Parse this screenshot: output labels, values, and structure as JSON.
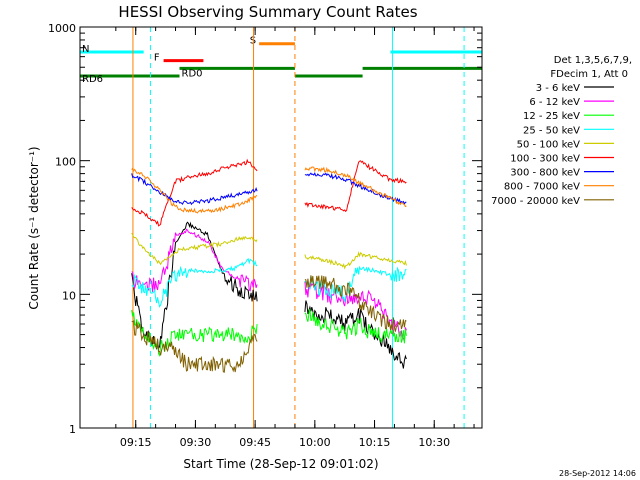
{
  "chart_data": {
    "type": "line",
    "title": "HESSI Observing Summary Count Rates",
    "xlabel": "Start Time (28-Sep-12 09:01:02)",
    "ylabel": "Count Rate (s⁻¹ detector⁻¹)",
    "yscale": "log",
    "xlim": [
      "09:01",
      "10:42"
    ],
    "ylim": [
      1,
      1000
    ],
    "x_ticks": [
      "09:15",
      "09:30",
      "09:45",
      "10:00",
      "10:15",
      "10:30"
    ],
    "y_ticks": [
      "1",
      "10",
      "100",
      "1000"
    ],
    "legend_header": [
      "Det 1,3,5,6,7,9,",
      "FDecim 1, Att 0"
    ],
    "timestamp": "28-Sep-2012 14:06",
    "gaps": [
      [
        "09:45.5",
        "09:57.5"
      ],
      [
        "10:23",
        "10:42"
      ]
    ],
    "series": [
      {
        "name": "3 - 6 keV",
        "color": "#000000",
        "points": [
          [
            "09:14",
            13
          ],
          [
            "09:17",
            5
          ],
          [
            "09:21",
            4
          ],
          [
            "09:25",
            24
          ],
          [
            "09:28",
            34
          ],
          [
            "09:33",
            28
          ],
          [
            "09:37",
            14
          ],
          [
            "09:41",
            11
          ],
          [
            "09:43",
            10
          ],
          [
            "09:58",
            8
          ],
          [
            "10:03",
            7
          ],
          [
            "10:08",
            6
          ],
          [
            "10:11",
            7
          ],
          [
            "10:15",
            5
          ],
          [
            "10:19",
            4
          ],
          [
            "10:23",
            3
          ]
        ]
      },
      {
        "name": "6 - 12 keV",
        "color": "#ff00ff",
        "points": [
          [
            "09:14",
            13
          ],
          [
            "09:17",
            12
          ],
          [
            "09:21",
            12
          ],
          [
            "09:25",
            27
          ],
          [
            "09:28",
            30
          ],
          [
            "09:33",
            25
          ],
          [
            "09:37",
            15
          ],
          [
            "09:41",
            13
          ],
          [
            "09:43",
            12
          ],
          [
            "09:58",
            11
          ],
          [
            "10:03",
            10
          ],
          [
            "10:08",
            9
          ],
          [
            "10:11",
            10
          ],
          [
            "10:15",
            9
          ],
          [
            "10:19",
            6
          ],
          [
            "10:23",
            5
          ]
        ]
      },
      {
        "name": "12 - 25 keV",
        "color": "#00ff00",
        "points": [
          [
            "09:14",
            7
          ],
          [
            "09:17",
            5
          ],
          [
            "09:21",
            4
          ],
          [
            "09:25",
            5
          ],
          [
            "09:28",
            5
          ],
          [
            "09:33",
            5
          ],
          [
            "09:37",
            5
          ],
          [
            "09:41",
            5
          ],
          [
            "09:43",
            5
          ],
          [
            "09:58",
            7
          ],
          [
            "10:03",
            6
          ],
          [
            "10:08",
            5
          ],
          [
            "10:11",
            6
          ],
          [
            "10:15",
            5
          ],
          [
            "10:19",
            5
          ],
          [
            "10:23",
            5
          ]
        ]
      },
      {
        "name": "25 - 50 keV",
        "color": "#00ffff",
        "points": [
          [
            "09:14",
            13
          ],
          [
            "09:17",
            11
          ],
          [
            "09:21",
            9
          ],
          [
            "09:25",
            14
          ],
          [
            "09:28",
            15
          ],
          [
            "09:33",
            15
          ],
          [
            "09:37",
            15
          ],
          [
            "09:41",
            16
          ],
          [
            "09:43",
            18
          ],
          [
            "09:58",
            12
          ],
          [
            "10:03",
            11
          ],
          [
            "10:08",
            10
          ],
          [
            "10:11",
            16
          ],
          [
            "10:15",
            15
          ],
          [
            "10:19",
            14
          ],
          [
            "10:23",
            14
          ]
        ]
      },
      {
        "name": "50 - 100 keV",
        "color": "#cccc00",
        "points": [
          [
            "09:14",
            28
          ],
          [
            "09:17",
            22
          ],
          [
            "09:21",
            17
          ],
          [
            "09:25",
            21
          ],
          [
            "09:28",
            22
          ],
          [
            "09:33",
            23
          ],
          [
            "09:37",
            24
          ],
          [
            "09:41",
            26
          ],
          [
            "09:43",
            27
          ],
          [
            "09:58",
            19
          ],
          [
            "10:03",
            18
          ],
          [
            "10:08",
            16
          ],
          [
            "10:11",
            20
          ],
          [
            "10:15",
            19
          ],
          [
            "10:19",
            18
          ],
          [
            "10:23",
            17
          ]
        ]
      },
      {
        "name": "100 - 300 keV",
        "color": "#ff0000",
        "points": [
          [
            "09:14",
            45
          ],
          [
            "09:17",
            40
          ],
          [
            "09:21",
            33
          ],
          [
            "09:25",
            70
          ],
          [
            "09:28",
            75
          ],
          [
            "09:33",
            80
          ],
          [
            "09:37",
            88
          ],
          [
            "09:41",
            93
          ],
          [
            "09:43",
            98
          ],
          [
            "09:58",
            47
          ],
          [
            "10:03",
            45
          ],
          [
            "10:08",
            43
          ],
          [
            "10:11",
            100
          ],
          [
            "10:15",
            85
          ],
          [
            "10:19",
            72
          ],
          [
            "10:23",
            70
          ]
        ]
      },
      {
        "name": "300 - 800 keV",
        "color": "#0000ff",
        "points": [
          [
            "09:14",
            78
          ],
          [
            "09:17",
            70
          ],
          [
            "09:21",
            58
          ],
          [
            "09:25",
            50
          ],
          [
            "09:28",
            48
          ],
          [
            "09:33",
            50
          ],
          [
            "09:37",
            53
          ],
          [
            "09:41",
            56
          ],
          [
            "09:43",
            58
          ],
          [
            "09:58",
            80
          ],
          [
            "10:03",
            78
          ],
          [
            "10:08",
            72
          ],
          [
            "10:11",
            65
          ],
          [
            "10:15",
            58
          ],
          [
            "10:19",
            52
          ],
          [
            "10:23",
            48
          ]
        ]
      },
      {
        "name": "800 - 7000 keV",
        "color": "#ff8000",
        "points": [
          [
            "09:14",
            88
          ],
          [
            "09:17",
            78
          ],
          [
            "09:21",
            60
          ],
          [
            "09:25",
            45
          ],
          [
            "09:28",
            42
          ],
          [
            "09:33",
            42
          ],
          [
            "09:37",
            44
          ],
          [
            "09:41",
            47
          ],
          [
            "09:43",
            50
          ],
          [
            "09:58",
            88
          ],
          [
            "10:03",
            85
          ],
          [
            "10:08",
            78
          ],
          [
            "10:11",
            68
          ],
          [
            "10:15",
            60
          ],
          [
            "10:19",
            52
          ],
          [
            "10:23",
            46
          ]
        ]
      },
      {
        "name": "7000 - 20000 keV",
        "color": "#806000",
        "points": [
          [
            "09:14",
            6
          ],
          [
            "09:17",
            5
          ],
          [
            "09:21",
            4
          ],
          [
            "09:25",
            4
          ],
          [
            "09:28",
            3
          ],
          [
            "09:33",
            3
          ],
          [
            "09:37",
            3
          ],
          [
            "09:41",
            3
          ],
          [
            "09:43",
            4
          ],
          [
            "09:58",
            13
          ],
          [
            "10:03",
            12
          ],
          [
            "10:08",
            11
          ],
          [
            "10:11",
            9
          ],
          [
            "10:15",
            7
          ],
          [
            "10:19",
            6
          ],
          [
            "10:23",
            6
          ]
        ]
      }
    ],
    "flags": [
      {
        "label": "N",
        "color": "#00ffff",
        "value": 650,
        "segments": [
          [
            "09:01",
            "09:17"
          ],
          [
            "10:19",
            "10:42"
          ]
        ]
      },
      {
        "label": "F",
        "color": "#ff0000",
        "value": 560,
        "segments": [
          [
            "09:22",
            "09:32"
          ]
        ]
      },
      {
        "label": "S",
        "color": "#ff8000",
        "value": 750,
        "segments": [
          [
            "09:46",
            "09:55"
          ]
        ]
      },
      {
        "label": "RD0",
        "color": "#008000",
        "value": 490,
        "segments": [
          [
            "09:26",
            "09:55"
          ],
          [
            "10:12",
            "10:42"
          ]
        ]
      },
      {
        "label": "RD6",
        "color": "#008000",
        "value": 430,
        "segments": [
          [
            "09:01",
            "09:26"
          ],
          [
            "09:55",
            "10:12"
          ]
        ]
      }
    ],
    "markers": [
      {
        "time": "09:14.3",
        "color": "#ff8000",
        "style": "solid"
      },
      {
        "time": "09:18.7",
        "color": "#00ffff",
        "style": "dashed"
      },
      {
        "time": "09:44.6",
        "color": "#ff8000",
        "style": "solid"
      },
      {
        "time": "09:55",
        "color": "#ff8000",
        "style": "dashed"
      },
      {
        "time": "10:19.5",
        "color": "#00ffff",
        "style": "solid"
      },
      {
        "time": "10:37.5",
        "color": "#00ffff",
        "style": "dashed"
      }
    ]
  }
}
